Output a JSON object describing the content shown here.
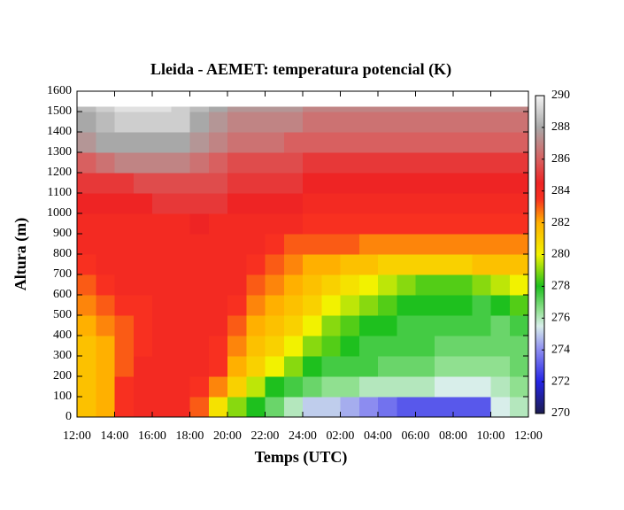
{
  "chart_data": {
    "type": "heatmap",
    "title": "Lleida - AEMET: temperatura potencial (K)",
    "xlabel": "Temps (UTC)",
    "ylabel": "Altura (m)",
    "xlim": [
      0,
      24
    ],
    "xticks": [
      {
        "value": 0,
        "label": "12:00"
      },
      {
        "value": 2,
        "label": "14:00"
      },
      {
        "value": 4,
        "label": "16:00"
      },
      {
        "value": 6,
        "label": "18:00"
      },
      {
        "value": 8,
        "label": "20:00"
      },
      {
        "value": 10,
        "label": "22:00"
      },
      {
        "value": 12,
        "label": "24:00"
      },
      {
        "value": 14,
        "label": "02:00"
      },
      {
        "value": 16,
        "label": "04:00"
      },
      {
        "value": 18,
        "label": "06:00"
      },
      {
        "value": 20,
        "label": "08:00"
      },
      {
        "value": 22,
        "label": "10:00"
      },
      {
        "value": 24,
        "label": "12:00"
      }
    ],
    "ylim": [
      0,
      1600
    ],
    "yticks": [
      0,
      100,
      200,
      300,
      400,
      500,
      600,
      700,
      800,
      900,
      1000,
      1100,
      1200,
      1300,
      1400,
      1500,
      1600
    ],
    "clim": [
      270,
      290
    ],
    "cticks": [
      270,
      272,
      274,
      276,
      278,
      280,
      282,
      284,
      286,
      288,
      290
    ],
    "colorscale": [
      [
        270,
        "#1c1c50"
      ],
      [
        272,
        "#2424e6"
      ],
      [
        274,
        "#8c8cf0"
      ],
      [
        275.5,
        "#d8eeea"
      ],
      [
        276.5,
        "#90e090"
      ],
      [
        278,
        "#1ec01e"
      ],
      [
        280,
        "#f2f200"
      ],
      [
        282,
        "#ffb000"
      ],
      [
        283.5,
        "#f83020"
      ],
      [
        284.5,
        "#ee2424"
      ],
      [
        286,
        "#d86060"
      ],
      [
        288,
        "#a8a8a8"
      ],
      [
        290,
        "#f4f4f4"
      ]
    ],
    "xedges": [
      0,
      1,
      2,
      3,
      4,
      5,
      6,
      7,
      8,
      9,
      10,
      11,
      12,
      13,
      14,
      15,
      16,
      17,
      18,
      19,
      20,
      21,
      22,
      23,
      24
    ],
    "yedges": [
      0,
      100,
      200,
      300,
      400,
      500,
      600,
      700,
      800,
      900,
      1000,
      1100,
      1200,
      1300,
      1400,
      1500,
      1525
    ],
    "z": [
      [
        281.5,
        282,
        283.5,
        284,
        284,
        284,
        283,
        280.5,
        279,
        278,
        277,
        276,
        275,
        275,
        274.5,
        274,
        273.5,
        273,
        273,
        273,
        273,
        273,
        275.5,
        276
      ],
      [
        281.5,
        282,
        283.5,
        284,
        284,
        284,
        283.5,
        282.5,
        281,
        279.5,
        278,
        277.5,
        277,
        276.5,
        276.5,
        276,
        276,
        276,
        276,
        275.5,
        275.5,
        275.5,
        276,
        276.5
      ],
      [
        281.5,
        282,
        283,
        284,
        284,
        284,
        284,
        283.5,
        282,
        281,
        280,
        279,
        278,
        277.5,
        277.5,
        277.5,
        277,
        277,
        277,
        276.5,
        276.5,
        276.5,
        276.5,
        277
      ],
      [
        281.5,
        282,
        283,
        283.5,
        284,
        284,
        284,
        283.5,
        282.5,
        281.5,
        281,
        280,
        279,
        278.5,
        278,
        277.5,
        277.5,
        277.5,
        277.5,
        277,
        277,
        277,
        277,
        277
      ],
      [
        282,
        282.5,
        283,
        283.5,
        284,
        284,
        284,
        284,
        283,
        282,
        281.5,
        281,
        280,
        279,
        278.5,
        278,
        278,
        277.5,
        277.5,
        277.5,
        277.5,
        277.5,
        277,
        277.5
      ],
      [
        282.5,
        283,
        283.5,
        283.5,
        284,
        284,
        284,
        284,
        283.5,
        282.5,
        282,
        281.5,
        281,
        280,
        279.5,
        279,
        278.5,
        278,
        278,
        278,
        278,
        277.5,
        278,
        278.5
      ],
      [
        283,
        283.5,
        284,
        284,
        284,
        284,
        284,
        284,
        284,
        283,
        282.5,
        282,
        281.5,
        281,
        280.5,
        280,
        279.5,
        279,
        278.5,
        278.5,
        278.5,
        279,
        279.5,
        280
      ],
      [
        283.5,
        284,
        284,
        284,
        284,
        284,
        284,
        284,
        284,
        283.5,
        283,
        282.5,
        282,
        282,
        281.5,
        281.5,
        281,
        281,
        281,
        281,
        281,
        281.5,
        281.5,
        281.5
      ],
      [
        284,
        284,
        284,
        284,
        284,
        284,
        284,
        284,
        284,
        284,
        283.5,
        283,
        283,
        283,
        283,
        282.5,
        282.5,
        282.5,
        282.5,
        282.5,
        282.5,
        282.5,
        282.5,
        282.5
      ],
      [
        284,
        284,
        284,
        284,
        284,
        284,
        284.5,
        284,
        284,
        284,
        284,
        284,
        283.5,
        283.5,
        283.5,
        283.5,
        283.5,
        283.5,
        283.5,
        283.5,
        283.5,
        283.5,
        283.5,
        283.5
      ],
      [
        284.5,
        284.5,
        284.5,
        284.5,
        285,
        285,
        285,
        285,
        284.5,
        284.5,
        284.5,
        284.5,
        284,
        284,
        284,
        284,
        284,
        284,
        284,
        284,
        284,
        284,
        284,
        284
      ],
      [
        285,
        285,
        285,
        285.5,
        285.5,
        285.5,
        285.5,
        285.5,
        285,
        285,
        285,
        285,
        284.5,
        284.5,
        284.5,
        284.5,
        284.5,
        284.5,
        284.5,
        284.5,
        284.5,
        284.5,
        284.5,
        284.5
      ],
      [
        286,
        286.5,
        287,
        287,
        287,
        287,
        286.5,
        286,
        285.5,
        285.5,
        285.5,
        285.5,
        285,
        285,
        285,
        285,
        285,
        285,
        285,
        285,
        285,
        285,
        285,
        285
      ],
      [
        287.5,
        288,
        288,
        288,
        288,
        288,
        287.5,
        287,
        286.5,
        286.5,
        286.5,
        286,
        286,
        286,
        286,
        286,
        286,
        286,
        286,
        286,
        286,
        286,
        286,
        286
      ],
      [
        288,
        288.5,
        289,
        289,
        289,
        289,
        288,
        287.5,
        287,
        287,
        287,
        287,
        286.5,
        286.5,
        286.5,
        286.5,
        286.5,
        286.5,
        286.5,
        286.5,
        286.5,
        286.5,
        286.5,
        286.5
      ],
      [
        288.5,
        289,
        289.5,
        289.5,
        289.5,
        289,
        288.5,
        288,
        287.5,
        287.5,
        287.5,
        287.5,
        287,
        287,
        287,
        287,
        287,
        287,
        287,
        287,
        287,
        287,
        287,
        287
      ]
    ]
  }
}
